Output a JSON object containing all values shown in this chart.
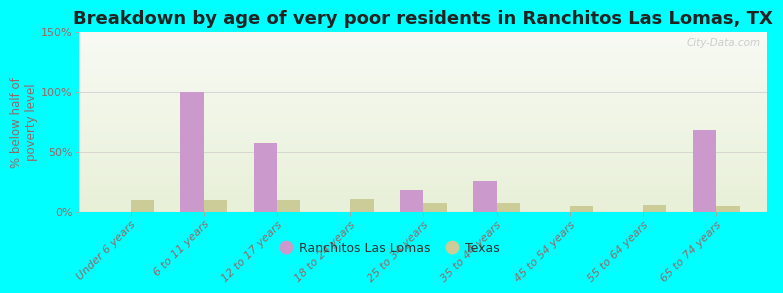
{
  "title": "Breakdown by age of very poor residents in Ranchitos Las Lomas, TX",
  "ylabel": "% below half of\npoverty level",
  "categories": [
    "Under 6 years",
    "6 to 11 years",
    "12 to 17 years",
    "18 to 24 years",
    "25 to 34 years",
    "35 to 44 years",
    "45 to 54 years",
    "55 to 64 years",
    "65 to 74 years"
  ],
  "ranchitos_values": [
    0,
    100,
    57,
    0,
    18,
    26,
    0,
    0,
    68
  ],
  "texas_values": [
    10,
    10,
    10,
    11,
    7,
    7,
    5,
    6,
    5
  ],
  "ranchitos_color": "#cc99cc",
  "texas_color": "#cccc99",
  "background_outer": "#00ffff",
  "bg_color_bottom_left": "#e8f0d8",
  "bg_color_top_right": "#f8faf4",
  "ylim": [
    0,
    150
  ],
  "yticks": [
    0,
    50,
    100,
    150
  ],
  "ytick_labels": [
    "0%",
    "50%",
    "100%",
    "150%"
  ],
  "bar_width": 0.32,
  "title_fontsize": 13,
  "axis_label_fontsize": 8.5,
  "tick_fontsize": 8,
  "legend_labels": [
    "Ranchitos Las Lomas",
    "Texas"
  ],
  "watermark": "City-Data.com",
  "tick_color": "#996666",
  "label_color": "#996666"
}
